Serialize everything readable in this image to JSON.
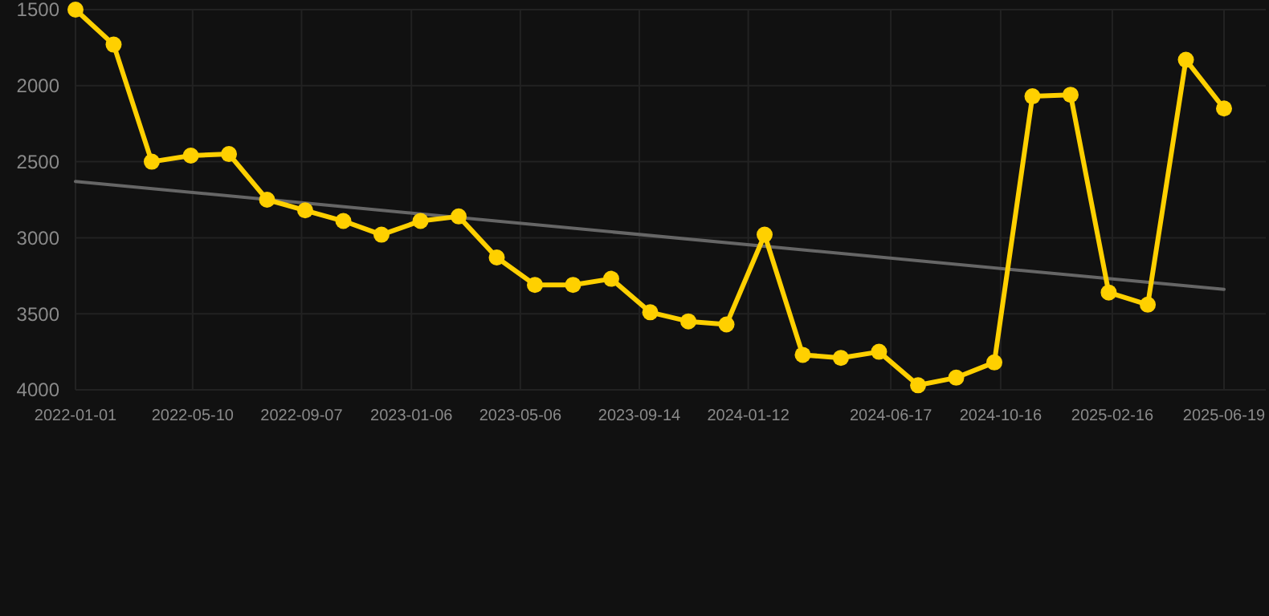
{
  "chart_data": {
    "type": "line",
    "x": [
      "2022-01-01",
      "2022-02-12",
      "2022-03-26",
      "2022-05-08",
      "2022-06-19",
      "2022-07-31",
      "2022-09-11",
      "2022-10-23",
      "2022-12-04",
      "2023-01-16",
      "2023-02-27",
      "2023-04-10",
      "2023-05-22",
      "2023-07-03",
      "2023-08-14",
      "2023-09-26",
      "2023-11-07",
      "2023-12-19",
      "2024-01-30",
      "2024-03-12",
      "2024-04-23",
      "2024-06-04",
      "2024-07-17",
      "2024-08-28",
      "2024-10-09",
      "2024-11-20",
      "2025-01-01",
      "2025-02-12",
      "2025-03-27",
      "2025-05-08",
      "2025-06-19"
    ],
    "series": [
      {
        "color": "#ffd000",
        "marker": "circle",
        "values": [
          1500,
          1730,
          2500,
          2460,
          2450,
          2750,
          2820,
          2890,
          2980,
          2890,
          2860,
          3130,
          3310,
          3310,
          3270,
          3490,
          3550,
          3570,
          2980,
          3770,
          3790,
          3750,
          3970,
          3920,
          3820,
          2070,
          2060,
          3360,
          3440,
          1830,
          2150
        ]
      },
      {
        "type": "line",
        "color": "#666666",
        "marker": "none",
        "x": [
          "2022-01-01",
          "2025-06-19"
        ],
        "values": [
          2630,
          3340
        ]
      }
    ],
    "xlim": [
      "2022-01-01",
      "2025-06-19"
    ],
    "xticks": [
      {
        "value": "2022-01-01",
        "label": "2022-01-01"
      },
      {
        "value": "2022-05-10",
        "label": "2022-05-10"
      },
      {
        "value": "2022-09-07",
        "label": "2022-09-07"
      },
      {
        "value": "2023-01-06",
        "label": "2023-01-06"
      },
      {
        "value": "2023-05-06",
        "label": "2023-05-06"
      },
      {
        "value": "2023-09-14",
        "label": "2023-09-14"
      },
      {
        "value": "2024-01-12",
        "label": "2024-01-12"
      },
      {
        "value": "2024-06-17",
        "label": "2024-06-17"
      },
      {
        "value": "2024-10-16",
        "label": "2024-10-16"
      },
      {
        "value": "2025-02-16",
        "label": "2025-02-16"
      },
      {
        "value": "2025-06-19",
        "label": "2025-06-19"
      }
    ],
    "ylim": [
      4000,
      1500
    ],
    "yticks": [
      1500,
      2000,
      2500,
      3000,
      3500,
      4000
    ],
    "grid": true,
    "line_style": "solid"
  }
}
